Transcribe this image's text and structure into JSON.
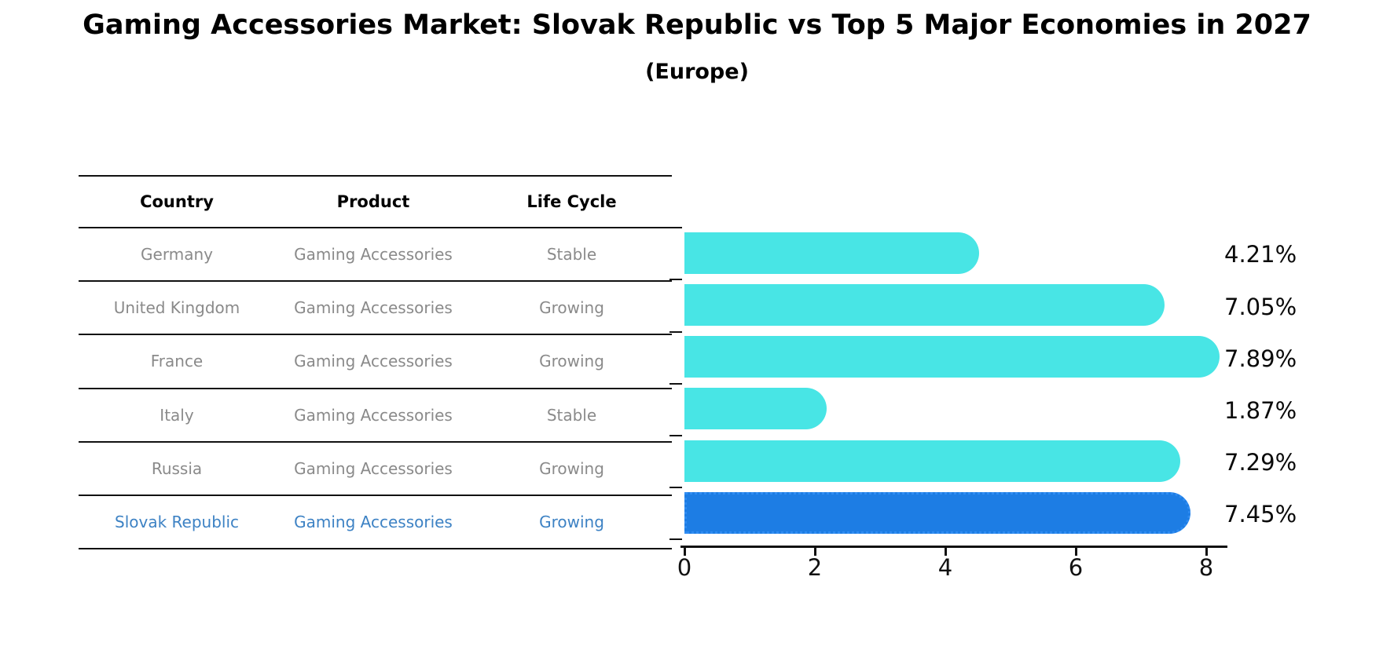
{
  "header": {
    "title": "Gaming Accessories Market: Slovak Republic vs Top 5 Major Economies in 2027",
    "subtitle": "(Europe)"
  },
  "table": {
    "columns": [
      "Country",
      "Product",
      "Life Cycle"
    ],
    "rows": [
      {
        "country": "Germany",
        "product": "Gaming Accessories",
        "life_cycle": "Stable",
        "highlight": false
      },
      {
        "country": "United Kingdom",
        "product": "Gaming Accessories",
        "life_cycle": "Growing",
        "highlight": false
      },
      {
        "country": "France",
        "product": "Gaming Accessories",
        "life_cycle": "Growing",
        "highlight": false
      },
      {
        "country": "Italy",
        "product": "Gaming Accessories",
        "life_cycle": "Stable",
        "highlight": false
      },
      {
        "country": "Russia",
        "product": "Gaming Accessories",
        "life_cycle": "Growing",
        "highlight": true
      }
    ],
    "highlight_row": {
      "country": "Slovak Republic",
      "product": "Gaming Accessories",
      "life_cycle": "Growing"
    }
  },
  "chart_data": {
    "type": "bar",
    "orientation": "horizontal",
    "title": "Gaming Accessories Market: Slovak Republic vs Top 5 Major Economies in 2027 (Europe)",
    "categories": [
      "Germany",
      "United Kingdom",
      "France",
      "Italy",
      "Russia",
      "Slovak Republic"
    ],
    "values": [
      4.21,
      7.05,
      7.89,
      1.87,
      7.29,
      7.45
    ],
    "value_labels": [
      "4.21%",
      "7.05%",
      "7.89%",
      "1.87%",
      "7.29%",
      "7.45%"
    ],
    "unit": "%",
    "x_ticks": [
      0,
      2,
      4,
      6,
      8
    ],
    "xlim": [
      0,
      8.3
    ],
    "grid": false,
    "legend": false,
    "bar_color": "#48E5E5",
    "highlight_color": "#1d7de4",
    "highlight_index": 5,
    "highlight_border_style": "dotted"
  }
}
